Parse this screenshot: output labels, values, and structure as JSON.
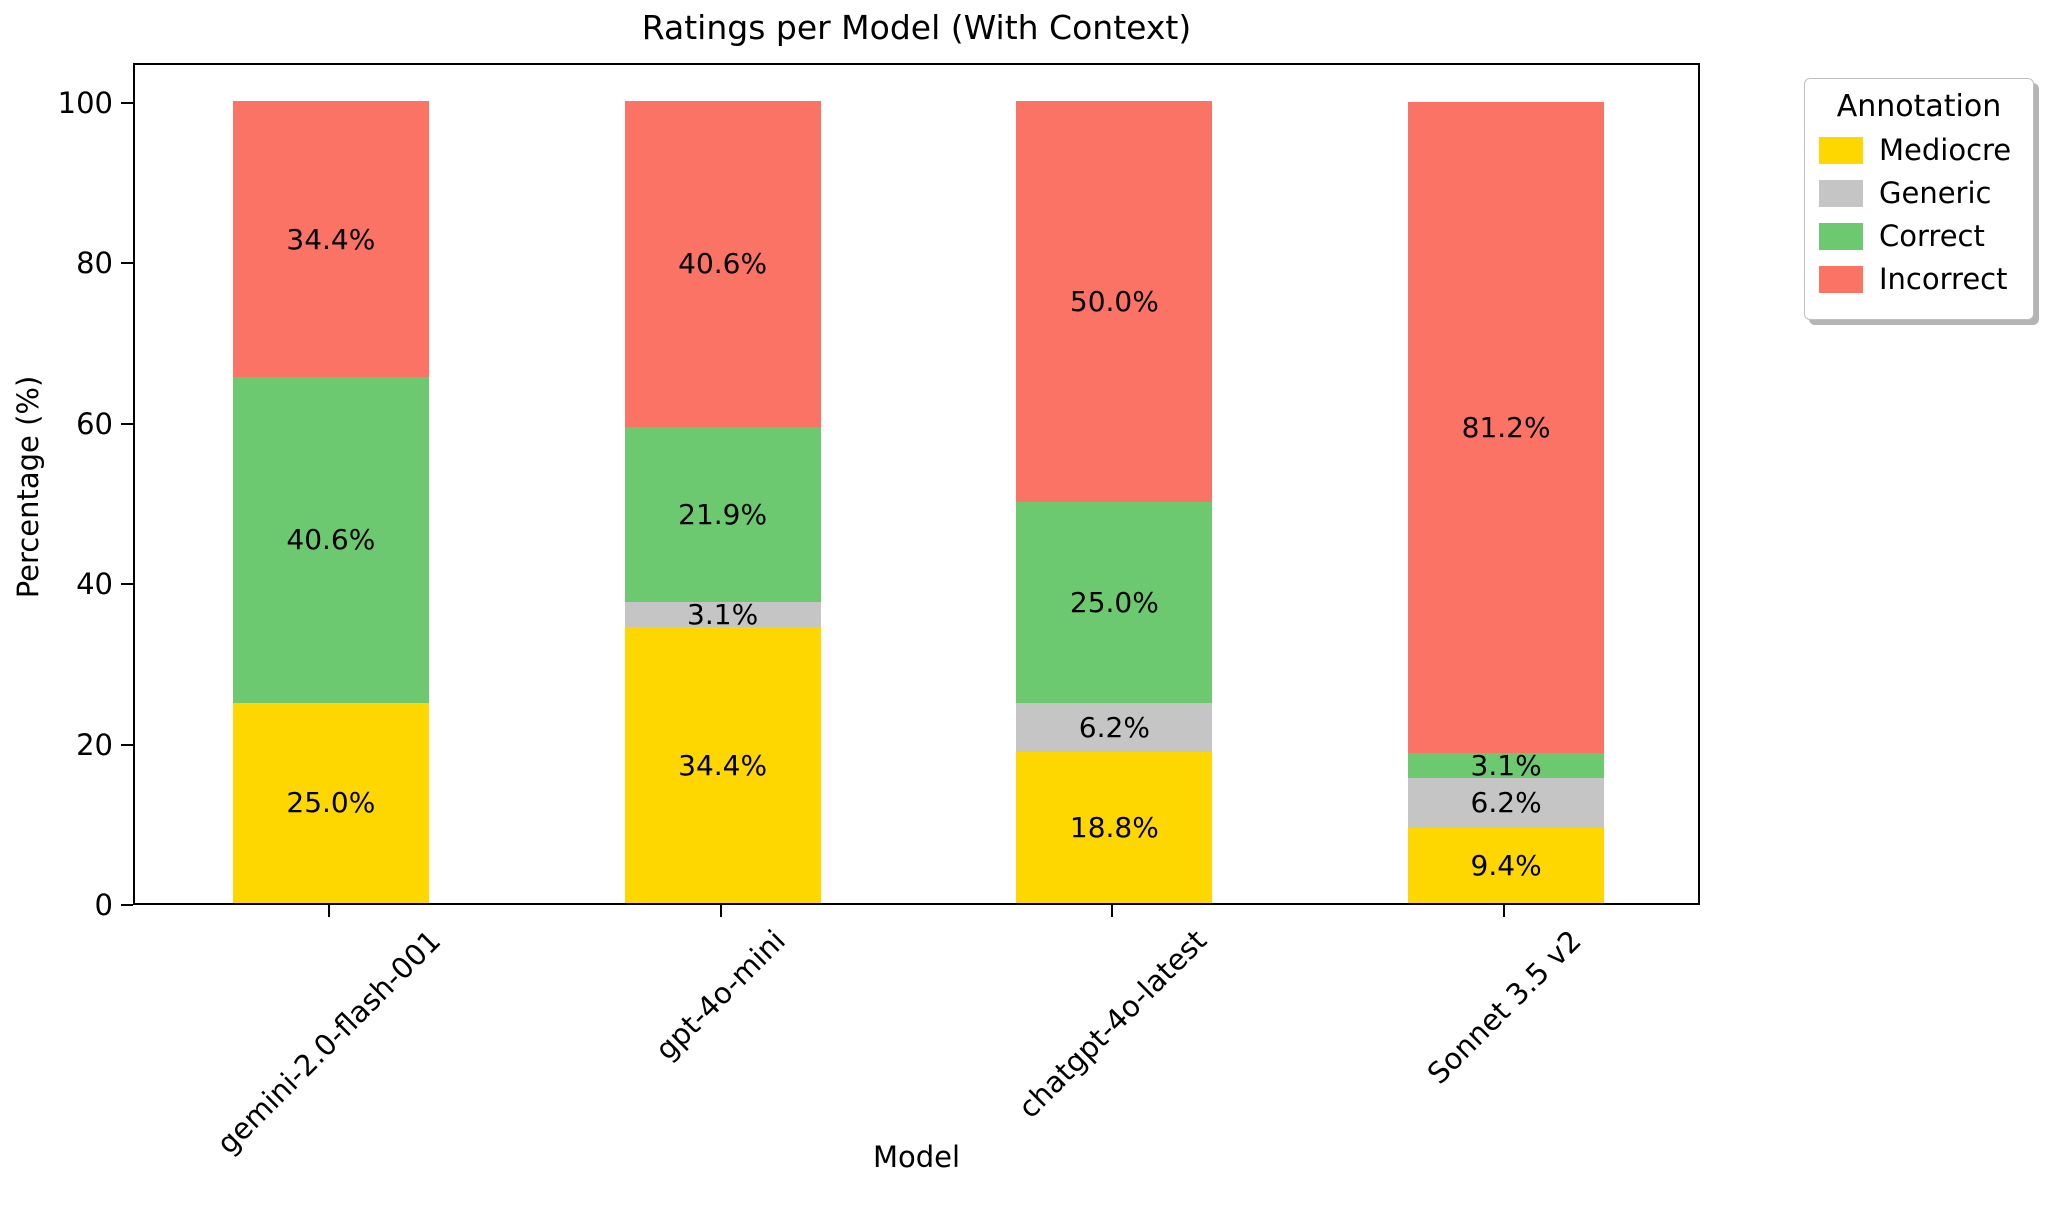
{
  "title": "Ratings per Model (With Context)",
  "axes": {
    "x_label": "Model",
    "y_label": "Percentage (%)",
    "y_ticks": [
      0,
      20,
      40,
      60,
      80,
      100
    ]
  },
  "legend": {
    "title": "Annotation",
    "items": [
      {
        "label": "Mediocre",
        "color": "#FFD700"
      },
      {
        "label": "Generic",
        "color": "#C5C5C5"
      },
      {
        "label": "Correct",
        "color": "#6DC970"
      },
      {
        "label": "Incorrect",
        "color": "#FB7365"
      }
    ]
  },
  "chart_data": {
    "type": "bar",
    "stacked": true,
    "title": "Ratings per Model (With Context)",
    "xlabel": "Model",
    "ylabel": "Percentage (%)",
    "ylim": [
      0,
      105
    ],
    "grid": false,
    "legend_position": "upper-right-outside",
    "bar_label_format": "percent-one-decimal",
    "categories": [
      "gemini-2.0-flash-001",
      "gpt-4o-mini",
      "chatgpt-4o-latest",
      "Sonnet 3.5 v2"
    ],
    "series": [
      {
        "name": "Mediocre",
        "color": "#FFD700",
        "values": [
          25.0,
          34.4,
          18.8,
          9.4
        ],
        "labels": [
          "25.0%",
          "34.4%",
          "18.8%",
          "9.4%"
        ]
      },
      {
        "name": "Generic",
        "color": "#C5C5C5",
        "values": [
          0.0,
          3.1,
          6.2,
          6.2
        ],
        "labels": [
          "",
          "3.1%",
          "6.2%",
          "6.2%"
        ]
      },
      {
        "name": "Correct",
        "color": "#6DC970",
        "values": [
          40.6,
          21.9,
          25.0,
          3.1
        ],
        "labels": [
          "40.6%",
          "21.9%",
          "25.0%",
          "3.1%"
        ]
      },
      {
        "name": "Incorrect",
        "color": "#FB7365",
        "values": [
          34.4,
          40.6,
          50.0,
          81.2
        ],
        "labels": [
          "34.4%",
          "40.6%",
          "50.0%",
          "81.2%"
        ]
      }
    ]
  }
}
